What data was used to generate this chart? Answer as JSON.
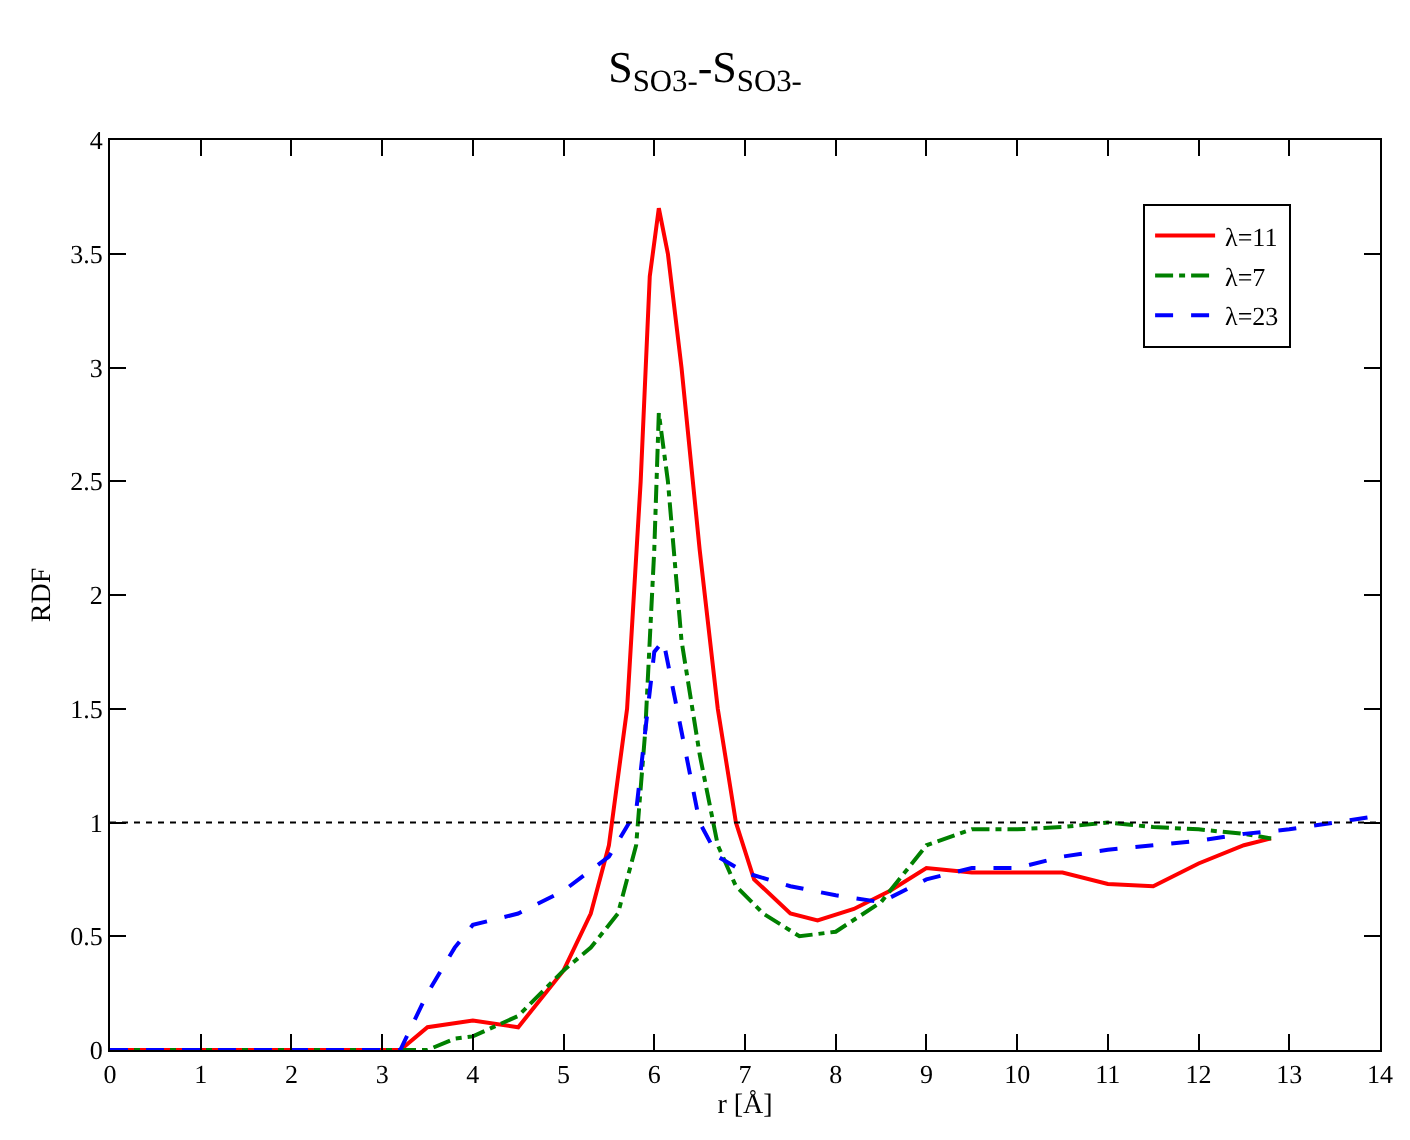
{
  "chart_data": {
    "type": "line",
    "title": "S$_{SO3-}$-S$_{SO3-}$",
    "xlabel": "r [Å]",
    "ylabel": "RDF",
    "xlim": [
      0,
      14
    ],
    "xticks": [
      0,
      1,
      2,
      3,
      4,
      5,
      6,
      7,
      8,
      9,
      10,
      11,
      12,
      13,
      14
    ],
    "ylim": [
      0,
      4
    ],
    "yticks": [
      0,
      0.5,
      1,
      1.5,
      2,
      2.5,
      3,
      3.5,
      4
    ],
    "legend": "top right",
    "marker": "none",
    "ref_lines": [
      {
        "axis": "y",
        "value": 1,
        "color": "#000000",
        "line_style": "dotted"
      }
    ],
    "series": [
      {
        "name": "λ=11",
        "color": "#ff0000",
        "line_style": "solid",
        "x": [
          0,
          3.2,
          3.5,
          4,
          4.5,
          5,
          5.3,
          5.5,
          5.7,
          5.85,
          5.95,
          6.05,
          6.15,
          6.3,
          6.5,
          6.7,
          6.9,
          7.1,
          7.5,
          7.8,
          8.2,
          8.6,
          9,
          9.5,
          10,
          10.5,
          11,
          11.5,
          12,
          12.5,
          12.8
        ],
        "values": [
          0,
          0,
          0.1,
          0.13,
          0.1,
          0.35,
          0.6,
          0.9,
          1.5,
          2.5,
          3.4,
          3.7,
          3.5,
          3.0,
          2.2,
          1.5,
          1.0,
          0.75,
          0.6,
          0.57,
          0.62,
          0.7,
          0.8,
          0.78,
          0.78,
          0.78,
          0.73,
          0.72,
          0.82,
          0.9,
          0.93
        ]
      },
      {
        "name": "λ=7",
        "color": "#008000",
        "line_style": "dashdot",
        "x": [
          0,
          3.5,
          3.8,
          4,
          4.5,
          5,
          5.3,
          5.6,
          5.8,
          5.9,
          6.0,
          6.05,
          6.15,
          6.3,
          6.5,
          6.7,
          6.9,
          7.2,
          7.6,
          8,
          8.5,
          9,
          9.5,
          10,
          10.5,
          11,
          11.5,
          12,
          12.5,
          12.8
        ],
        "values": [
          0,
          0,
          0.05,
          0.06,
          0.15,
          0.35,
          0.45,
          0.6,
          0.9,
          1.4,
          2.2,
          2.8,
          2.5,
          1.8,
          1.3,
          0.9,
          0.72,
          0.6,
          0.5,
          0.52,
          0.65,
          0.9,
          0.97,
          0.97,
          0.98,
          1.0,
          0.98,
          0.97,
          0.95,
          0.93
        ]
      },
      {
        "name": "λ=23",
        "color": "#0000ff",
        "line_style": "dashed",
        "x": [
          0,
          3.2,
          3.5,
          3.8,
          4,
          4.5,
          5,
          5.5,
          5.8,
          6,
          6.1,
          6.3,
          6.5,
          6.7,
          7,
          7.5,
          8,
          8.5,
          9,
          9.5,
          10,
          10.5,
          11,
          11.5,
          12,
          12.5,
          13,
          13.5,
          14
        ],
        "values": [
          0,
          0,
          0.25,
          0.45,
          0.55,
          0.6,
          0.7,
          0.85,
          1.05,
          1.75,
          1.8,
          1.4,
          1.0,
          0.85,
          0.78,
          0.72,
          0.68,
          0.65,
          0.75,
          0.8,
          0.8,
          0.85,
          0.88,
          0.9,
          0.92,
          0.95,
          0.97,
          1.0,
          1.03
        ]
      }
    ]
  }
}
